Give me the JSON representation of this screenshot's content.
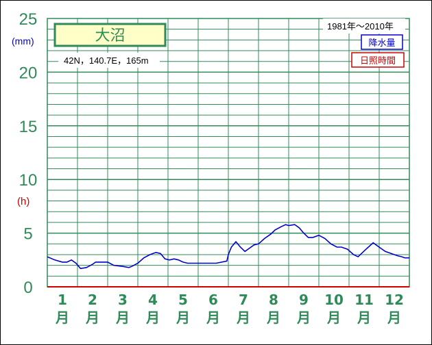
{
  "chart_data": {
    "type": "line",
    "title": "大沼",
    "location": "42N，140.7E，165m",
    "period": "1981年～2010年",
    "legend": [
      {
        "label": "降水量",
        "color": "#0000cc"
      },
      {
        "label": "日照時間",
        "color": "#cc0000"
      }
    ],
    "y_unit_left": "(mm)",
    "y_unit_h": "(h)",
    "ylim": [
      0,
      25
    ],
    "yticks": [
      0,
      5,
      10,
      15,
      20,
      25
    ],
    "months": [
      "1",
      "2",
      "3",
      "4",
      "5",
      "6",
      "7",
      "8",
      "9",
      "10",
      "11",
      "12"
    ],
    "month_suffix": "月",
    "series": [
      {
        "name": "降水量",
        "color": "#0000cc",
        "x": [
          0.0,
          0.25,
          0.5,
          0.65,
          0.8,
          0.95,
          1.1,
          1.3,
          1.5,
          1.6,
          1.75,
          2.0,
          2.2,
          2.5,
          2.7,
          2.8,
          3.0,
          3.2,
          3.4,
          3.6,
          3.75,
          3.9,
          4.05,
          4.2,
          4.35,
          4.5,
          4.65,
          4.85,
          5.0,
          5.3,
          5.6,
          5.95,
          6.0,
          6.1,
          6.25,
          6.4,
          6.55,
          6.7,
          6.85,
          7.0,
          7.2,
          7.4,
          7.55,
          7.75,
          7.9,
          8.0,
          8.2,
          8.35,
          8.5,
          8.65,
          8.8,
          9.0,
          9.2,
          9.4,
          9.6,
          9.75,
          9.95,
          10.15,
          10.3,
          10.45,
          10.6,
          10.8,
          11.05,
          11.2,
          11.4,
          11.6,
          11.75,
          11.85,
          12.0
        ],
        "values": [
          2.8,
          2.5,
          2.3,
          2.3,
          2.5,
          2.2,
          1.7,
          1.8,
          2.1,
          2.3,
          2.3,
          2.3,
          2.0,
          1.9,
          1.8,
          1.9,
          2.2,
          2.7,
          3.0,
          3.2,
          3.1,
          2.6,
          2.5,
          2.6,
          2.5,
          2.3,
          2.2,
          2.2,
          2.2,
          2.2,
          2.2,
          2.4,
          3.0,
          3.7,
          4.2,
          3.7,
          3.3,
          3.6,
          3.9,
          4.0,
          4.5,
          4.9,
          5.3,
          5.6,
          5.8,
          5.7,
          5.8,
          5.5,
          5.0,
          4.6,
          4.6,
          4.8,
          4.5,
          4.0,
          3.7,
          3.7,
          3.5,
          3.0,
          2.8,
          3.2,
          3.6,
          4.1,
          3.6,
          3.3,
          3.1,
          2.9,
          2.8,
          2.7,
          2.7
        ]
      },
      {
        "name": "日照時間",
        "color": "#cc0000",
        "x": [
          0,
          12
        ],
        "values": [
          0,
          0
        ]
      }
    ]
  }
}
